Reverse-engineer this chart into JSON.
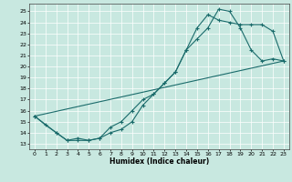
{
  "xlabel": "Humidex (Indice chaleur)",
  "bg_color": "#c8e8e0",
  "line_color": "#1a6b6b",
  "xlim": [
    -0.5,
    23.5
  ],
  "ylim": [
    12.5,
    25.7
  ],
  "yticks": [
    13,
    14,
    15,
    16,
    17,
    18,
    19,
    20,
    21,
    22,
    23,
    24,
    25
  ],
  "xticks": [
    0,
    1,
    2,
    3,
    4,
    5,
    6,
    7,
    8,
    9,
    10,
    11,
    12,
    13,
    14,
    15,
    16,
    17,
    18,
    19,
    20,
    21,
    22,
    23
  ],
  "line1_x": [
    0,
    1,
    2,
    3,
    4,
    5,
    6,
    7,
    8,
    9,
    10,
    11,
    12,
    13,
    14,
    15,
    16,
    17,
    18,
    19,
    20,
    21,
    22,
    23
  ],
  "line1_y": [
    15.5,
    14.7,
    14.0,
    13.3,
    13.3,
    13.3,
    13.5,
    14.0,
    14.3,
    15.0,
    16.5,
    17.5,
    18.5,
    19.5,
    21.5,
    22.5,
    23.5,
    25.2,
    25.0,
    23.5,
    21.5,
    20.5,
    20.7,
    20.5
  ],
  "line2_x": [
    0,
    2,
    3,
    4,
    5,
    6,
    7,
    8,
    9,
    10,
    11,
    12,
    13,
    14,
    15,
    16,
    17,
    18,
    19,
    20,
    21,
    22,
    23
  ],
  "line2_y": [
    15.5,
    14.0,
    13.3,
    13.5,
    13.3,
    13.5,
    14.5,
    15.0,
    16.0,
    17.0,
    17.5,
    18.5,
    19.5,
    21.5,
    23.5,
    24.7,
    24.2,
    24.0,
    23.8,
    23.8,
    23.8,
    23.2,
    20.5
  ],
  "line3_x": [
    0,
    23
  ],
  "line3_y": [
    15.5,
    20.5
  ]
}
